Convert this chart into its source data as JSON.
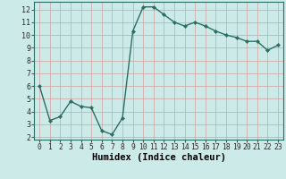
{
  "x": [
    0,
    1,
    2,
    3,
    4,
    5,
    6,
    7,
    8,
    9,
    10,
    11,
    12,
    13,
    14,
    15,
    16,
    17,
    18,
    19,
    20,
    21,
    22,
    23
  ],
  "y": [
    6.0,
    3.3,
    3.6,
    4.8,
    4.4,
    4.3,
    2.5,
    2.2,
    3.5,
    10.3,
    12.2,
    12.2,
    11.6,
    11.0,
    10.7,
    11.0,
    10.7,
    10.3,
    10.0,
    9.8,
    9.5,
    9.5,
    8.8,
    9.2
  ],
  "xlabel": "Humidex (Indice chaleur)",
  "xlim": [
    -0.5,
    23.5
  ],
  "ylim": [
    1.8,
    12.6
  ],
  "yticks": [
    2,
    3,
    4,
    5,
    6,
    7,
    8,
    9,
    10,
    11,
    12
  ],
  "xticks": [
    0,
    1,
    2,
    3,
    4,
    5,
    6,
    7,
    8,
    9,
    10,
    11,
    12,
    13,
    14,
    15,
    16,
    17,
    18,
    19,
    20,
    21,
    22,
    23
  ],
  "line_color": "#2a6e63",
  "marker": "D",
  "markersize": 2.2,
  "bg_color": "#cceae8",
  "grid_color": "#b8d8d5",
  "xlabel_fontsize": 7.5,
  "tick_fontsize": 6.0,
  "linewidth": 1.0
}
